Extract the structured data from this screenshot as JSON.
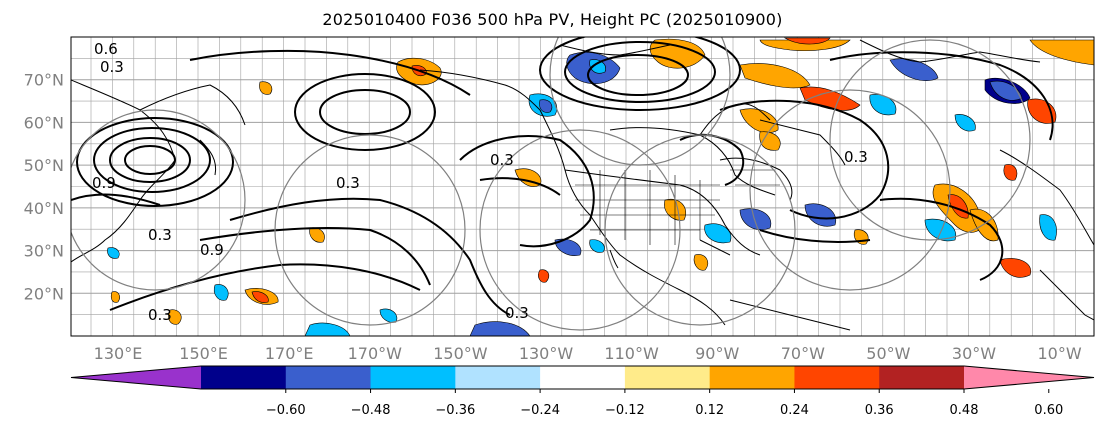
{
  "title": "2025010400 F036 500 hPa PV, Height PC (2025010900)",
  "map": {
    "lat_labels": [
      "70°N",
      "60°N",
      "50°N",
      "40°N",
      "30°N",
      "20°N"
    ],
    "lat_values": [
      70,
      60,
      50,
      40,
      30,
      20
    ],
    "lat_range": [
      10,
      80
    ],
    "lon_labels": [
      "130°E",
      "150°E",
      "170°E",
      "170°W",
      "150°W",
      "130°W",
      "110°W",
      "90°W",
      "70°W",
      "50°W",
      "30°W",
      "10°W"
    ],
    "contour_labels": [
      "0.6",
      "0.3",
      "0.9",
      "0.3",
      "0.3",
      "0.3",
      "0.3",
      "0.9",
      "0.3",
      "0.3"
    ],
    "colors": {
      "coastline": "#000000",
      "grid": "#a0a0a0",
      "contour": "#000000",
      "circles": "#808080"
    }
  },
  "colorbar": {
    "ticks": [
      "−0.60",
      "−0.48",
      "−0.36",
      "−0.24",
      "−0.12",
      "0.12",
      "0.24",
      "0.36",
      "0.48",
      "0.60"
    ],
    "colors": [
      "#9932cc",
      "#00008b",
      "#3a5fcd",
      "#00bfff",
      "#b0e2ff",
      "#ffffff",
      "#ffeb8a",
      "#ffa500",
      "#ff4500",
      "#b22222",
      "#ff88aa"
    ]
  }
}
